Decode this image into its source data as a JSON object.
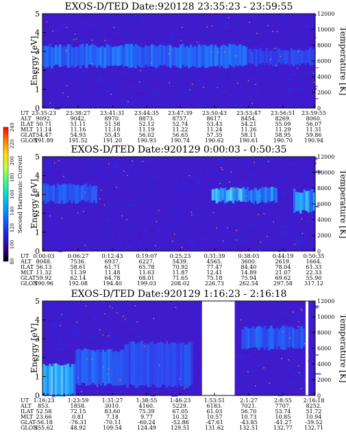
{
  "panels": [
    {
      "title": "EXOS-D/TED   Date:920128  23:35:23 - 23:59:55",
      "ylabel": "Energy [eV]",
      "ylabel_right": "Temperature [K]",
      "energy_ticks": [
        "0",
        "1",
        "2",
        "3",
        "4",
        "5"
      ],
      "temp_ticks": [
        "0",
        "2000",
        "4000",
        "6000",
        "8000",
        "10000",
        "12000"
      ],
      "orbit_labels": [
        "UT",
        "ALT",
        "ILAT",
        "MLT",
        "GLAT",
        "GLON"
      ],
      "orbit_columns": [
        [
          "23:35:23",
          "9092.",
          "50.71",
          "11.14",
          "54.47",
          "191.89"
        ],
        [
          "23:38:27",
          "9042.",
          "51.11",
          "11.16",
          "54.93",
          "191.52"
        ],
        [
          "23:41:31",
          "8970.",
          "51.58",
          "11.18",
          "55.45",
          "191.20"
        ],
        [
          "23:44:35",
          "8873.",
          "52.12",
          "11.19",
          "56.02",
          "190.93"
        ],
        [
          "23:47:39",
          "8757.",
          "52.74",
          "11.22",
          "56.65",
          "190.74"
        ],
        [
          "23:50:43",
          "8617.",
          "53.43",
          "11.24",
          "57.35",
          "190.62"
        ],
        [
          "23:53:47",
          "8454.",
          "54.21",
          "11.26",
          "58.11",
          "190.61"
        ],
        [
          "23:56:51",
          "8269.",
          "55.09",
          "11.29",
          "58.95",
          "190.70"
        ],
        [
          "23:59:55",
          "8060.",
          "56.07",
          "11.31",
          "59.86",
          "190.94"
        ]
      ]
    },
    {
      "title": "EXOS-D/TED   Date:920129  0:00:03 - 0:50:35",
      "ylabel": "Energy [eV]",
      "ylabel_right": "Temperature [K]",
      "energy_ticks": [
        "0",
        "1",
        "2",
        "3",
        "4",
        "5"
      ],
      "temp_ticks": [
        "0",
        "2000",
        "4000",
        "6000",
        "8000",
        "10000",
        "12000"
      ],
      "orbit_labels": [
        "UT",
        "ALT",
        "ILAT",
        "MLT",
        "GLAT",
        "GLON"
      ],
      "orbit_columns": [
        [
          "0:00:03",
          "8048.",
          "56.13",
          "11.32",
          "59.92",
          "190.96"
        ],
        [
          "0:06:27",
          "7536.",
          "58.61",
          "11.39",
          "62.14",
          "192.08"
        ],
        [
          "0:12:43",
          "6937.",
          "61.71",
          "11.48",
          "64.78",
          "194.40"
        ],
        [
          "0:19:07",
          "6227.",
          "65.78",
          "11.63",
          "68.01",
          "199.03"
        ],
        [
          "0:25:23",
          "5439.",
          "70.92",
          "11.87",
          "71.65",
          "208.02"
        ],
        [
          "0:31:39",
          "4565.",
          "77.47",
          "12.41",
          "75.18",
          "226.73"
        ],
        [
          "0:38:03",
          "3600.",
          "84.40",
          "14.89",
          "75.94",
          "262.54"
        ],
        [
          "0:44:19",
          "2619.",
          "78.04",
          "21.07",
          "69.62",
          "297.58"
        ],
        [
          "0:50:35",
          "1664.",
          "61.33",
          "22.33",
          "55.90",
          "317.12"
        ]
      ]
    },
    {
      "title": "EXOS-D/TED   Date:920129  1:16:23 - 2:16:18",
      "ylabel": "Energy [eV]",
      "ylabel_right": "Temperature [K]",
      "energy_ticks": [
        "0",
        "1",
        "2",
        "3",
        "4",
        "5"
      ],
      "temp_ticks": [
        "0",
        "2000",
        "4000",
        "6000",
        "8000",
        "10000",
        "12000"
      ],
      "orbit_labels": [
        "UT",
        "ALT",
        "ILAT",
        "MLT",
        "GLAT",
        "GLON"
      ],
      "orbit_columns": [
        [
          "1:16:23",
          "853.",
          "52.58",
          "23.66",
          "-56.18",
          "355.62"
        ],
        [
          "1:23:59",
          "1858.",
          "72.15",
          "0.81",
          "-76.31",
          "48.92"
        ],
        [
          "1:31:27",
          "3010.",
          "83.60",
          "7.18",
          "-70.11",
          "109.54"
        ],
        [
          "1:38:55",
          "4160.",
          "75.39",
          "9.77",
          "-60.24",
          "124.49"
        ],
        [
          "1:46:23",
          "5229.",
          "67.05",
          "10.32",
          "-52.86",
          "129.51"
        ],
        [
          "1:53:51",
          "6183.",
          "61.03",
          "10.57",
          "-47.61",
          "131.62"
        ],
        [
          "2:1:27",
          "7021.",
          "56.70",
          "10.73",
          "-43.85",
          "132.51"
        ],
        [
          "2:8:55",
          "7707.",
          "53.74",
          "10.85",
          "-41.27",
          "132.77"
        ],
        [
          "2:16:18",
          "8252.",
          "51.72",
          "10.94",
          "-39.52",
          "132.71"
        ]
      ]
    }
  ],
  "colorbar": {
    "label": "Second Harmonic Current",
    "ticks": [
      "80",
      "100",
      "120",
      "140",
      "160",
      "180",
      "200",
      "220",
      "240"
    ],
    "colors": [
      "#000000",
      "#3a0090",
      "#2020e0",
      "#1060ff",
      "#00a0ff",
      "#00e0d0",
      "#40ff80",
      "#c0ff40",
      "#ffe000",
      "#ff8000",
      "#ff0000"
    ]
  },
  "chart_data": [
    {
      "type": "heatmap",
      "title": "EXOS-D/TED   Date:920128  23:35:23 - 23:59:55",
      "ylabel": "Energy [eV]",
      "ylabel_right": "Temperature [K]",
      "ylim": [
        0,
        5
      ],
      "ylim_right": [
        0,
        12000
      ],
      "x_ticks": [
        "23:35:23",
        "23:38:27",
        "23:41:31",
        "23:44:35",
        "23:47:39",
        "23:50:43",
        "23:53:47",
        "23:56:51",
        "23:59:55"
      ],
      "features": [
        {
          "x_frac": [
            0.0,
            0.75
          ],
          "energy": [
            2.2,
            3.3
          ],
          "level": 0.42
        },
        {
          "x_frac": [
            0.75,
            1.0
          ],
          "energy": [
            2.3,
            3.1
          ],
          "level": 0.3
        }
      ]
    },
    {
      "type": "heatmap",
      "title": "EXOS-D/TED   Date:920129  0:00:03 - 0:50:35",
      "ylabel": "Energy [eV]",
      "ylabel_right": "Temperature [K]",
      "ylim": [
        0,
        5
      ],
      "ylim_right": [
        0,
        12000
      ],
      "x_ticks": [
        "0:00:03",
        "0:06:27",
        "0:12:43",
        "0:19:07",
        "0:25:23",
        "0:31:39",
        "0:38:03",
        "0:44:19",
        "0:50:35"
      ],
      "features": [
        {
          "x_frac": [
            0.0,
            0.2
          ],
          "energy": [
            2.6,
            3.5
          ],
          "level": 0.38
        },
        {
          "x_frac": [
            0.62,
            0.74
          ],
          "energy": [
            2.6,
            3.3
          ],
          "level": 0.62
        },
        {
          "x_frac": [
            0.74,
            0.86
          ],
          "energy": [
            2.6,
            3.3
          ],
          "level": 0.5
        },
        {
          "x_frac": [
            0.92,
            1.0
          ],
          "energy": [
            2.1,
            3.2
          ],
          "level": 0.55
        }
      ]
    },
    {
      "type": "heatmap",
      "title": "EXOS-D/TED   Date:920129  1:16:23 - 2:16:18",
      "ylabel": "Energy [eV]",
      "ylabel_right": "Temperature [K]",
      "ylim": [
        0,
        5
      ],
      "ylim_right": [
        0,
        12000
      ],
      "x_ticks": [
        "1:16:23",
        "1:23:59",
        "1:31:27",
        "1:38:55",
        "1:46:23",
        "1:53:51",
        "2:1:27",
        "2:8:55",
        "2:16:18"
      ],
      "features": [
        {
          "x_frac": [
            0.0,
            0.12
          ],
          "energy": [
            0.0,
            1.6
          ],
          "level": 0.6
        },
        {
          "x_frac": [
            0.12,
            0.3
          ],
          "energy": [
            0.6,
            2.4
          ],
          "level": 0.4
        },
        {
          "x_frac": [
            0.3,
            0.55
          ],
          "energy": [
            0.5,
            2.8
          ],
          "level": 0.32
        },
        {
          "x_frac": [
            0.73,
            0.96
          ],
          "energy": [
            2.5,
            3.6
          ],
          "level": 0.38
        }
      ],
      "data_gaps_x_frac": [
        [
          0.585,
          0.705
        ],
        [
          0.965,
          0.975
        ]
      ]
    }
  ]
}
